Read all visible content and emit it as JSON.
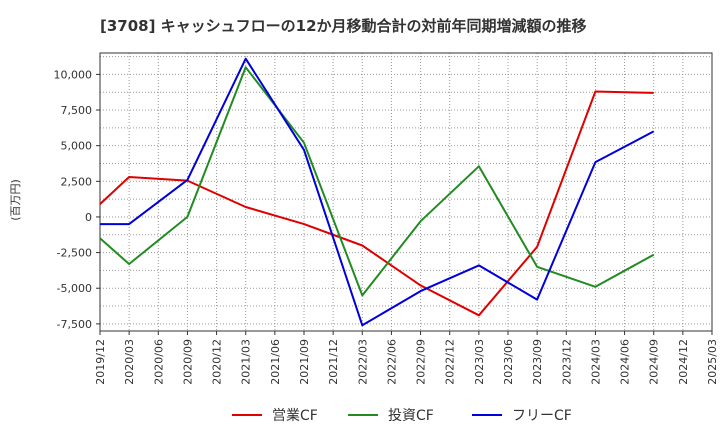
{
  "chart_data": {
    "type": "line",
    "title": "[3708]  キャッシュフローの12か月移動合計の対前年同期増減額の推移",
    "ylabel": "(百万円)",
    "ylim": [
      -8000,
      11500
    ],
    "yticks": [
      10000,
      7500,
      5000,
      2500,
      0,
      -2500,
      -5000,
      -7500
    ],
    "ytick_labels": [
      "10,000",
      "7,500",
      "5,000",
      "2,500",
      "0",
      "-2,500",
      "-5,000",
      "-7,500"
    ],
    "x_labels": [
      "2019/12",
      "2020/03",
      "2020/06",
      "2020/09",
      "2020/12",
      "2021/03",
      "2021/06",
      "2021/09",
      "2021/12",
      "2022/03",
      "2022/06",
      "2022/09",
      "2022/12",
      "2023/03",
      "2023/06",
      "2023/09",
      "2023/12",
      "2024/03",
      "2024/06",
      "2024/09",
      "2024/12",
      "2025/03"
    ],
    "grid": true,
    "legend_position": "bottom",
    "series": [
      {
        "name": "営業CF",
        "color": "#e00000",
        "points": [
          [
            0,
            900
          ],
          [
            1,
            2800
          ],
          [
            3,
            2550
          ],
          [
            5,
            700
          ],
          [
            7,
            -500
          ],
          [
            9,
            -2000
          ],
          [
            11,
            -4800
          ],
          [
            13,
            -6900
          ],
          [
            15,
            -2100
          ],
          [
            17,
            8800
          ],
          [
            19,
            8700
          ]
        ]
      },
      {
        "name": "投資CF",
        "color": "#228b22",
        "points": [
          [
            0,
            -1500
          ],
          [
            1,
            -3300
          ],
          [
            3,
            0
          ],
          [
            5,
            10500
          ],
          [
            7,
            5200
          ],
          [
            9,
            -5500
          ],
          [
            11,
            -300
          ],
          [
            13,
            3550
          ],
          [
            15,
            -3500
          ],
          [
            17,
            -4900
          ],
          [
            19,
            -2650
          ]
        ]
      },
      {
        "name": "フリーCF",
        "color": "#0000dd",
        "points": [
          [
            0,
            -500
          ],
          [
            1,
            -500
          ],
          [
            3,
            2600
          ],
          [
            5,
            11100
          ],
          [
            7,
            4700
          ],
          [
            9,
            -7600
          ],
          [
            11,
            -5200
          ],
          [
            13,
            -3400
          ],
          [
            15,
            -5800
          ],
          [
            17,
            3850
          ],
          [
            19,
            6000
          ]
        ]
      }
    ]
  }
}
